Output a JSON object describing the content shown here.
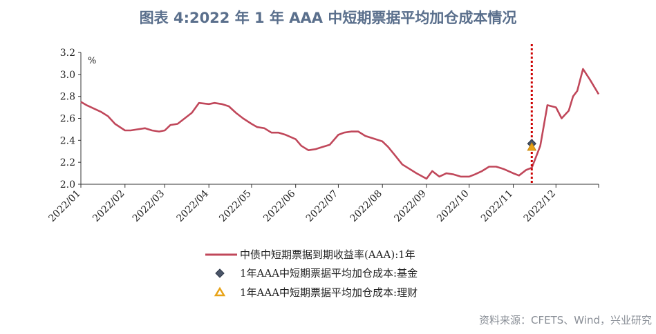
{
  "title": "图表 4:2022 年 1 年 AAA 中短期票据平均加仓成本情况",
  "source": "资料来源：CFETS、Wind，兴业研究",
  "chart_data": {
    "type": "line",
    "unit": "%",
    "ylim": [
      2.0,
      3.2
    ],
    "yticks": [
      "2.0",
      "2.2",
      "2.4",
      "2.6",
      "2.8",
      "3.0",
      "3.2"
    ],
    "xlim": [
      "2022-01-01",
      "2022-12-31"
    ],
    "xticks": [
      "2022/01",
      "2022/02",
      "2022/03",
      "2022/04",
      "2022/05",
      "2022/06",
      "2022/07",
      "2022/08",
      "2022/09",
      "2022/10",
      "2022/11",
      "2022/12"
    ],
    "grid": false,
    "legend_position": "bottom",
    "vline": {
      "x": "2022-11-14",
      "color": "#cc0000",
      "style": "dotted"
    },
    "colors": {
      "line": "#c0475a",
      "fund": "#4a5568",
      "wealth": "#e8a317",
      "vline": "#cc0000"
    },
    "series": [
      {
        "name": "中债中短期票据到期收益率(AAA):1年",
        "kind": "line",
        "x": [
          "2022-01-01",
          "2022-01-05",
          "2022-01-10",
          "2022-01-15",
          "2022-01-20",
          "2022-01-25",
          "2022-02-01",
          "2022-02-05",
          "2022-02-10",
          "2022-02-15",
          "2022-02-20",
          "2022-02-25",
          "2022-03-01",
          "2022-03-05",
          "2022-03-10",
          "2022-03-15",
          "2022-03-20",
          "2022-03-25",
          "2022-04-01",
          "2022-04-05",
          "2022-04-10",
          "2022-04-15",
          "2022-04-20",
          "2022-04-25",
          "2022-05-01",
          "2022-05-05",
          "2022-05-10",
          "2022-05-15",
          "2022-05-20",
          "2022-05-25",
          "2022-06-01",
          "2022-06-05",
          "2022-06-10",
          "2022-06-15",
          "2022-06-20",
          "2022-06-25",
          "2022-07-01",
          "2022-07-05",
          "2022-07-10",
          "2022-07-15",
          "2022-07-20",
          "2022-07-25",
          "2022-08-01",
          "2022-08-05",
          "2022-08-10",
          "2022-08-15",
          "2022-08-20",
          "2022-08-25",
          "2022-09-01",
          "2022-09-05",
          "2022-09-10",
          "2022-09-15",
          "2022-09-20",
          "2022-09-25",
          "2022-10-01",
          "2022-10-05",
          "2022-10-10",
          "2022-10-15",
          "2022-10-20",
          "2022-10-25",
          "2022-11-01",
          "2022-11-05",
          "2022-11-10",
          "2022-11-14",
          "2022-11-17",
          "2022-11-20",
          "2022-11-25",
          "2022-12-01",
          "2022-12-05",
          "2022-12-10",
          "2022-12-13",
          "2022-12-16",
          "2022-12-20",
          "2022-12-25",
          "2022-12-31"
        ],
        "y": [
          2.75,
          2.72,
          2.69,
          2.66,
          2.62,
          2.55,
          2.49,
          2.49,
          2.5,
          2.51,
          2.49,
          2.48,
          2.49,
          2.54,
          2.55,
          2.6,
          2.65,
          2.74,
          2.73,
          2.74,
          2.73,
          2.71,
          2.65,
          2.6,
          2.55,
          2.52,
          2.51,
          2.47,
          2.47,
          2.45,
          2.41,
          2.35,
          2.31,
          2.32,
          2.34,
          2.36,
          2.45,
          2.47,
          2.48,
          2.48,
          2.44,
          2.42,
          2.39,
          2.34,
          2.26,
          2.18,
          2.14,
          2.1,
          2.05,
          2.12,
          2.07,
          2.1,
          2.09,
          2.07,
          2.07,
          2.09,
          2.12,
          2.16,
          2.16,
          2.14,
          2.1,
          2.08,
          2.13,
          2.15,
          2.25,
          2.35,
          2.72,
          2.7,
          2.6,
          2.67,
          2.8,
          2.85,
          3.05,
          2.95,
          2.82
        ]
      },
      {
        "name": "1年AAA中短期票据平均加仓成本:基金",
        "kind": "diamond",
        "x": [
          "2022-11-14"
        ],
        "y": [
          2.37
        ]
      },
      {
        "name": "1年AAA中短期票据平均加仓成本:理财",
        "kind": "triangle",
        "x": [
          "2022-11-14"
        ],
        "y": [
          2.34
        ]
      }
    ]
  }
}
